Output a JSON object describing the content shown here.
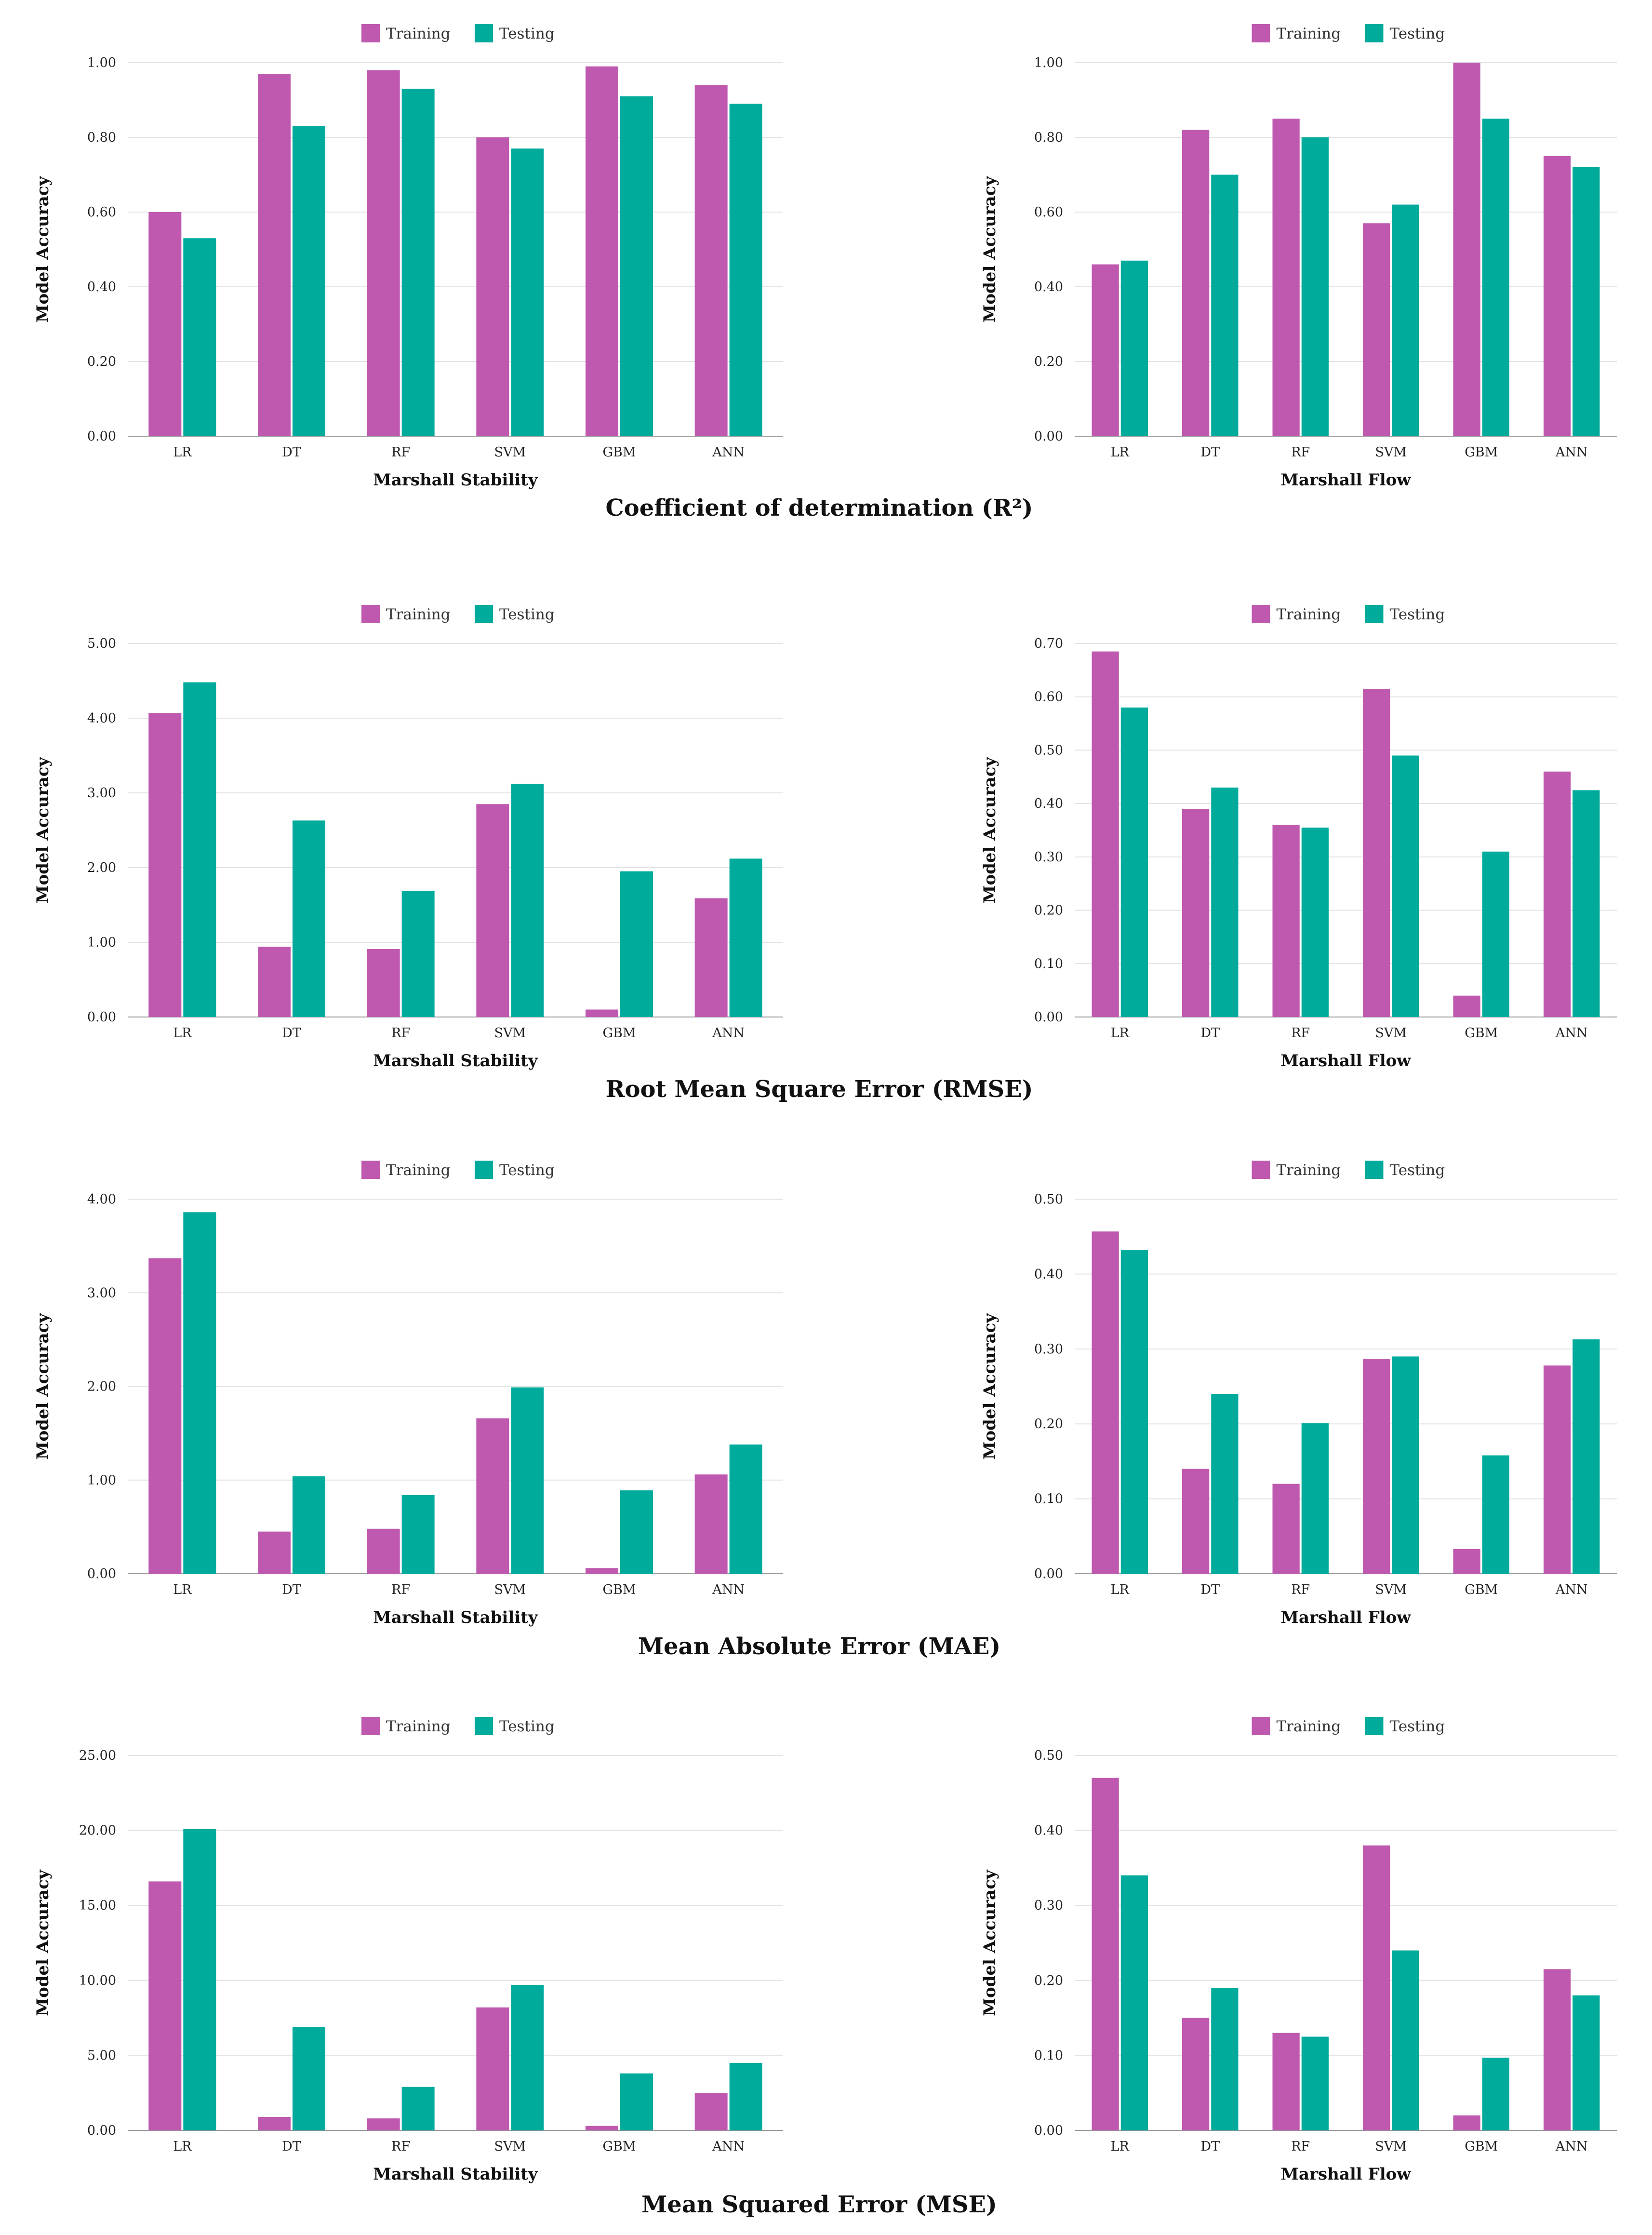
{
  "colors": {
    "training": "#be59af",
    "testing": "#00ab9c"
  },
  "chart_data": [
    {
      "type": "bar",
      "title": "Coefficient of determination (R²)",
      "xlabel": "Marshall Stability",
      "ylabel": "Model Accuracy",
      "categories": [
        "LR",
        "DT",
        "RF",
        "SVM",
        "GBM",
        "ANN"
      ],
      "ylim": [
        0,
        1.0
      ],
      "yticks": [
        "0.00",
        "0.20",
        "0.40",
        "0.60",
        "0.80",
        "1.00"
      ],
      "legend": {
        "position": "top-center",
        "entries": [
          "Training",
          "Testing"
        ]
      },
      "series": [
        {
          "name": "Training",
          "values": [
            0.6,
            0.97,
            0.98,
            0.8,
            0.99,
            0.94
          ]
        },
        {
          "name": "Testing",
          "values": [
            0.53,
            0.83,
            0.93,
            0.77,
            0.91,
            0.89
          ]
        }
      ]
    },
    {
      "type": "bar",
      "title": "Coefficient of determination (R²)",
      "xlabel": "Marshall Flow",
      "ylabel": "Model Accuracy",
      "categories": [
        "LR",
        "DT",
        "RF",
        "SVM",
        "GBM",
        "ANN"
      ],
      "ylim": [
        0,
        1.0
      ],
      "yticks": [
        "0.00",
        "0.20",
        "0.40",
        "0.60",
        "0.80",
        "1.00"
      ],
      "legend": {
        "position": "top-center",
        "entries": [
          "Training",
          "Testing"
        ]
      },
      "series": [
        {
          "name": "Training",
          "values": [
            0.46,
            0.82,
            0.85,
            0.57,
            1.0,
            0.75
          ]
        },
        {
          "name": "Testing",
          "values": [
            0.47,
            0.7,
            0.8,
            0.62,
            0.85,
            0.72
          ]
        }
      ]
    },
    {
      "type": "bar",
      "title": "Root Mean Square Error (RMSE)",
      "xlabel": "Marshall Stability",
      "ylabel": "Model Accuracy",
      "categories": [
        "LR",
        "DT",
        "RF",
        "SVM",
        "GBM",
        "ANN"
      ],
      "ylim": [
        0,
        5.0
      ],
      "yticks": [
        "0.00",
        "1.00",
        "2.00",
        "3.00",
        "4.00",
        "5.00"
      ],
      "legend": {
        "position": "top-center",
        "entries": [
          "Training",
          "Testing"
        ]
      },
      "series": [
        {
          "name": "Training",
          "values": [
            4.07,
            0.94,
            0.91,
            2.85,
            0.1,
            1.59
          ]
        },
        {
          "name": "Testing",
          "values": [
            4.48,
            2.63,
            1.69,
            3.12,
            1.95,
            2.12
          ]
        }
      ]
    },
    {
      "type": "bar",
      "title": "Root Mean Square Error (RMSE)",
      "xlabel": "Marshall Flow",
      "ylabel": "Model Accuracy",
      "categories": [
        "LR",
        "DT",
        "RF",
        "SVM",
        "GBM",
        "ANN"
      ],
      "ylim": [
        0,
        0.7
      ],
      "yticks": [
        "0.00",
        "0.10",
        "0.20",
        "0.30",
        "0.40",
        "0.50",
        "0.60",
        "0.70"
      ],
      "legend": {
        "position": "top-center",
        "entries": [
          "Training",
          "Testing"
        ]
      },
      "series": [
        {
          "name": "Training",
          "values": [
            0.685,
            0.39,
            0.36,
            0.615,
            0.04,
            0.46
          ]
        },
        {
          "name": "Testing",
          "values": [
            0.58,
            0.43,
            0.355,
            0.49,
            0.31,
            0.425
          ]
        }
      ]
    },
    {
      "type": "bar",
      "title": "Mean Absolute Error (MAE)",
      "xlabel": "Marshall Stability",
      "ylabel": "Model Accuracy",
      "categories": [
        "LR",
        "DT",
        "RF",
        "SVM",
        "GBM",
        "ANN"
      ],
      "ylim": [
        0,
        4.0
      ],
      "yticks": [
        "0.00",
        "1.00",
        "2.00",
        "3.00",
        "4.00"
      ],
      "legend": {
        "position": "top-center",
        "entries": [
          "Training",
          "Testing"
        ]
      },
      "series": [
        {
          "name": "Training",
          "values": [
            3.37,
            0.45,
            0.48,
            1.66,
            0.06,
            1.06
          ]
        },
        {
          "name": "Testing",
          "values": [
            3.86,
            1.04,
            0.84,
            1.99,
            0.89,
            1.38
          ]
        }
      ]
    },
    {
      "type": "bar",
      "title": "Mean Absolute Error (MAE)",
      "xlabel": "Marshall Flow",
      "ylabel": "Model Accuracy",
      "categories": [
        "LR",
        "DT",
        "RF",
        "SVM",
        "GBM",
        "ANN"
      ],
      "ylim": [
        0,
        0.5
      ],
      "yticks": [
        "0.00",
        "0.10",
        "0.20",
        "0.30",
        "0.40",
        "0.50"
      ],
      "legend": {
        "position": "top-center",
        "entries": [
          "Training",
          "Testing"
        ]
      },
      "series": [
        {
          "name": "Training",
          "values": [
            0.457,
            0.14,
            0.12,
            0.287,
            0.033,
            0.278
          ]
        },
        {
          "name": "Testing",
          "values": [
            0.432,
            0.24,
            0.201,
            0.29,
            0.158,
            0.313
          ]
        }
      ]
    },
    {
      "type": "bar",
      "title": "Mean Squared Error (MSE)",
      "xlabel": "Marshall Stability",
      "ylabel": "Model Accuracy",
      "categories": [
        "LR",
        "DT",
        "RF",
        "SVM",
        "GBM",
        "ANN"
      ],
      "ylim": [
        0,
        25.0
      ],
      "yticks": [
        "0.00",
        "5.00",
        "10.00",
        "15.00",
        "20.00",
        "25.00"
      ],
      "legend": {
        "position": "top-center",
        "entries": [
          "Training",
          "Testing"
        ]
      },
      "series": [
        {
          "name": "Training",
          "values": [
            16.6,
            0.9,
            0.8,
            8.2,
            0.3,
            2.5
          ]
        },
        {
          "name": "Testing",
          "values": [
            20.1,
            6.9,
            2.9,
            9.7,
            3.8,
            4.5
          ]
        }
      ]
    },
    {
      "type": "bar",
      "title": "Mean Squared Error (MSE)",
      "xlabel": "Marshall Flow",
      "ylabel": "Model Accuracy",
      "categories": [
        "LR",
        "DT",
        "RF",
        "SVM",
        "GBM",
        "ANN"
      ],
      "ylim": [
        0,
        0.5
      ],
      "yticks": [
        "0.00",
        "0.10",
        "0.20",
        "0.30",
        "0.40",
        "0.50"
      ],
      "legend": {
        "position": "top-center",
        "entries": [
          "Training",
          "Testing"
        ]
      },
      "series": [
        {
          "name": "Training",
          "values": [
            0.47,
            0.15,
            0.13,
            0.38,
            0.02,
            0.215
          ]
        },
        {
          "name": "Testing",
          "values": [
            0.34,
            0.19,
            0.125,
            0.24,
            0.097,
            0.18
          ]
        }
      ]
    }
  ]
}
